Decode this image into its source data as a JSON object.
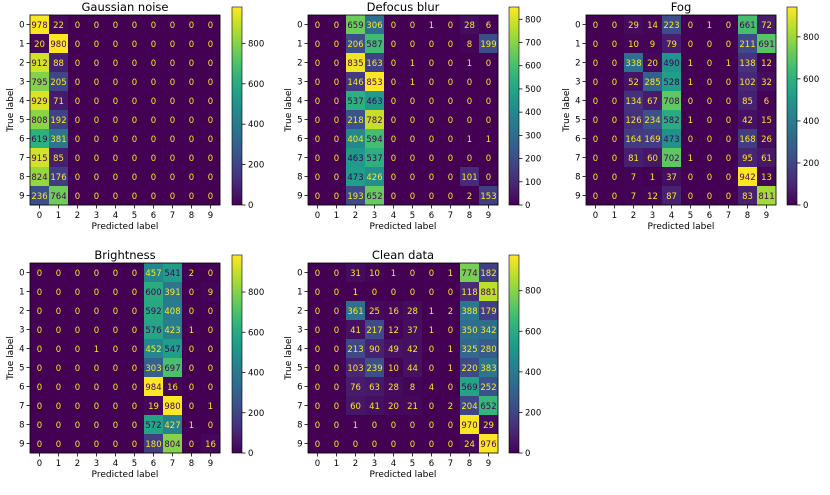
{
  "chart_data": [
    {
      "type": "heatmap",
      "title": "Gaussian noise",
      "xlabel": "Predicted label",
      "ylabel": "True label",
      "x_ticks": [
        "0",
        "1",
        "2",
        "3",
        "4",
        "5",
        "6",
        "7",
        "8",
        "9"
      ],
      "y_ticks": [
        "0",
        "1",
        "2",
        "3",
        "4",
        "5",
        "6",
        "7",
        "8",
        "9"
      ],
      "colormap": "viridis",
      "color_range": [
        0,
        980
      ],
      "colorbar_ticks": [
        "0",
        "200",
        "400",
        "600",
        "800"
      ],
      "matrix": [
        [
          978,
          22,
          0,
          0,
          0,
          0,
          0,
          0,
          0,
          0
        ],
        [
          20,
          980,
          0,
          0,
          0,
          0,
          0,
          0,
          0,
          0
        ],
        [
          912,
          88,
          0,
          0,
          0,
          0,
          0,
          0,
          0,
          0
        ],
        [
          795,
          205,
          0,
          0,
          0,
          0,
          0,
          0,
          0,
          0
        ],
        [
          929,
          71,
          0,
          0,
          0,
          0,
          0,
          0,
          0,
          0
        ],
        [
          808,
          192,
          0,
          0,
          0,
          0,
          0,
          0,
          0,
          0
        ],
        [
          619,
          381,
          0,
          0,
          0,
          0,
          0,
          0,
          0,
          0
        ],
        [
          915,
          85,
          0,
          0,
          0,
          0,
          0,
          0,
          0,
          0
        ],
        [
          824,
          176,
          0,
          0,
          0,
          0,
          0,
          0,
          0,
          0
        ],
        [
          236,
          764,
          0,
          0,
          0,
          0,
          0,
          0,
          0,
          0
        ]
      ]
    },
    {
      "type": "heatmap",
      "title": "Defocus blur",
      "xlabel": "Predicted label",
      "ylabel": "True label",
      "x_ticks": [
        "0",
        "1",
        "2",
        "3",
        "4",
        "5",
        "6",
        "7",
        "8",
        "9"
      ],
      "y_ticks": [
        "0",
        "1",
        "2",
        "3",
        "4",
        "5",
        "6",
        "7",
        "8",
        "9"
      ],
      "colormap": "viridis",
      "color_range": [
        0,
        853
      ],
      "colorbar_ticks": [
        "0",
        "100",
        "200",
        "300",
        "400",
        "500",
        "600",
        "700",
        "800"
      ],
      "matrix": [
        [
          0,
          0,
          659,
          306,
          0,
          0,
          1,
          0,
          28,
          6
        ],
        [
          0,
          0,
          206,
          587,
          0,
          0,
          0,
          0,
          8,
          199
        ],
        [
          0,
          0,
          835,
          163,
          0,
          1,
          0,
          0,
          1,
          0
        ],
        [
          0,
          0,
          146,
          853,
          0,
          1,
          0,
          0,
          0,
          0
        ],
        [
          0,
          0,
          537,
          463,
          0,
          0,
          0,
          0,
          0,
          0
        ],
        [
          0,
          0,
          218,
          782,
          0,
          0,
          0,
          0,
          0,
          0
        ],
        [
          0,
          0,
          404,
          594,
          0,
          0,
          0,
          0,
          1,
          1
        ],
        [
          0,
          0,
          463,
          537,
          0,
          0,
          0,
          0,
          0,
          0
        ],
        [
          0,
          0,
          473,
          426,
          0,
          0,
          0,
          0,
          101,
          0
        ],
        [
          0,
          0,
          193,
          652,
          0,
          0,
          0,
          0,
          2,
          153
        ]
      ]
    },
    {
      "type": "heatmap",
      "title": "Fog",
      "xlabel": "Predicted label",
      "ylabel": "True label",
      "x_ticks": [
        "0",
        "1",
        "2",
        "3",
        "4",
        "5",
        "6",
        "7",
        "8",
        "9"
      ],
      "y_ticks": [
        "0",
        "1",
        "2",
        "3",
        "4",
        "5",
        "6",
        "7",
        "8",
        "9"
      ],
      "colormap": "viridis",
      "color_range": [
        0,
        942
      ],
      "colorbar_ticks": [
        "0",
        "200",
        "400",
        "600",
        "800"
      ],
      "matrix": [
        [
          0,
          0,
          29,
          14,
          223,
          0,
          1,
          0,
          661,
          72
        ],
        [
          0,
          0,
          10,
          9,
          79,
          0,
          0,
          0,
          211,
          691
        ],
        [
          0,
          0,
          338,
          20,
          490,
          1,
          0,
          1,
          138,
          12
        ],
        [
          0,
          0,
          52,
          285,
          528,
          1,
          0,
          0,
          102,
          32
        ],
        [
          0,
          0,
          134,
          67,
          708,
          0,
          0,
          0,
          85,
          6
        ],
        [
          0,
          0,
          126,
          234,
          582,
          1,
          0,
          0,
          42,
          15
        ],
        [
          0,
          0,
          164,
          169,
          473,
          0,
          0,
          0,
          168,
          26
        ],
        [
          0,
          0,
          81,
          60,
          702,
          1,
          0,
          0,
          95,
          61
        ],
        [
          0,
          0,
          7,
          1,
          37,
          0,
          0,
          0,
          942,
          13
        ],
        [
          0,
          0,
          7,
          12,
          87,
          0,
          0,
          0,
          83,
          811
        ]
      ]
    },
    {
      "type": "heatmap",
      "title": "Brightness",
      "xlabel": "Predicted label",
      "ylabel": "True label",
      "x_ticks": [
        "0",
        "1",
        "2",
        "3",
        "4",
        "5",
        "6",
        "7",
        "8",
        "9"
      ],
      "y_ticks": [
        "0",
        "1",
        "2",
        "3",
        "4",
        "5",
        "6",
        "7",
        "8",
        "9"
      ],
      "colormap": "viridis",
      "color_range": [
        0,
        984
      ],
      "colorbar_ticks": [
        "0",
        "200",
        "400",
        "600",
        "800"
      ],
      "matrix": [
        [
          0,
          0,
          0,
          0,
          0,
          0,
          457,
          541,
          2,
          0
        ],
        [
          0,
          0,
          0,
          0,
          0,
          0,
          600,
          391,
          0,
          9
        ],
        [
          0,
          0,
          0,
          0,
          0,
          0,
          592,
          408,
          0,
          0
        ],
        [
          0,
          0,
          0,
          0,
          0,
          0,
          576,
          423,
          1,
          0
        ],
        [
          0,
          0,
          0,
          1,
          0,
          0,
          452,
          547,
          0,
          0
        ],
        [
          0,
          0,
          0,
          0,
          0,
          0,
          303,
          697,
          0,
          0
        ],
        [
          0,
          0,
          0,
          0,
          0,
          0,
          984,
          16,
          0,
          0
        ],
        [
          0,
          0,
          0,
          0,
          0,
          0,
          19,
          980,
          0,
          1
        ],
        [
          0,
          0,
          0,
          0,
          0,
          0,
          572,
          427,
          1,
          0
        ],
        [
          0,
          0,
          0,
          0,
          0,
          0,
          180,
          804,
          0,
          16
        ]
      ]
    },
    {
      "type": "heatmap",
      "title": "Clean data",
      "xlabel": "Predicted label",
      "ylabel": "True label",
      "x_ticks": [
        "0",
        "1",
        "2",
        "3",
        "4",
        "5",
        "6",
        "7",
        "8",
        "9"
      ],
      "y_ticks": [
        "0",
        "1",
        "2",
        "3",
        "4",
        "5",
        "6",
        "7",
        "8",
        "9"
      ],
      "colormap": "viridis",
      "color_range": [
        0,
        976
      ],
      "colorbar_ticks": [
        "0",
        "200",
        "400",
        "600",
        "800"
      ],
      "matrix": [
        [
          0,
          0,
          31,
          10,
          1,
          0,
          0,
          1,
          774,
          182
        ],
        [
          0,
          0,
          1,
          0,
          0,
          0,
          0,
          0,
          118,
          881
        ],
        [
          0,
          0,
          361,
          25,
          16,
          28,
          1,
          2,
          388,
          179
        ],
        [
          0,
          0,
          41,
          217,
          12,
          37,
          1,
          0,
          350,
          342
        ],
        [
          0,
          0,
          213,
          90,
          49,
          42,
          0,
          1,
          325,
          280
        ],
        [
          0,
          0,
          103,
          239,
          10,
          44,
          0,
          1,
          220,
          383
        ],
        [
          0,
          0,
          76,
          63,
          28,
          8,
          4,
          0,
          569,
          252
        ],
        [
          0,
          0,
          60,
          41,
          20,
          21,
          0,
          2,
          204,
          652
        ],
        [
          0,
          0,
          1,
          0,
          0,
          0,
          0,
          0,
          970,
          29
        ],
        [
          0,
          0,
          0,
          0,
          0,
          0,
          0,
          0,
          24,
          976
        ]
      ]
    }
  ]
}
